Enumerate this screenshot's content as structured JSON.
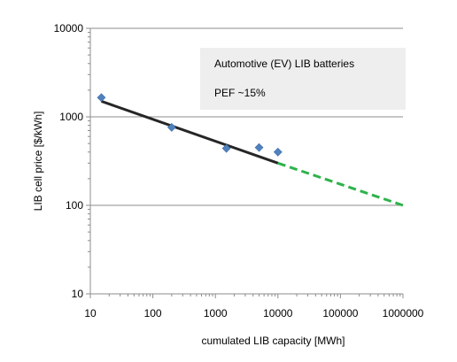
{
  "chart_data": {
    "type": "scatter",
    "title": "",
    "xlabel": "cumulated LIB capacity [MWh]",
    "ylabel": "LIB cell price [$/kWh]",
    "x_scale": "log",
    "y_scale": "log",
    "xlim": [
      10,
      1000000
    ],
    "ylim": [
      10,
      10000
    ],
    "x_ticks": [
      "10",
      "100",
      "1000",
      "10000",
      "100000",
      "1000000"
    ],
    "y_ticks": [
      "10",
      "100",
      "1000",
      "10000"
    ],
    "grid": "horizontal major",
    "series": [
      {
        "kind": "scatter",
        "marker": "diamond",
        "color": "#4f81bd",
        "points": [
          {
            "x": 15,
            "y": 1650
          },
          {
            "x": 200,
            "y": 760
          },
          {
            "x": 1500,
            "y": 440
          },
          {
            "x": 5000,
            "y": 450
          },
          {
            "x": 10000,
            "y": 400
          }
        ]
      },
      {
        "kind": "fit",
        "style": "solid",
        "color": "#262626",
        "points": [
          {
            "x": 15,
            "y": 1500
          },
          {
            "x": 10000,
            "y": 300
          }
        ]
      },
      {
        "kind": "projection",
        "style": "dashed",
        "color": "#2db34a",
        "points": [
          {
            "x": 10000,
            "y": 300
          },
          {
            "x": 1000000,
            "y": 100
          }
        ]
      }
    ],
    "annotation": {
      "lines": [
        "Automotive (EV) LIB batteries",
        "PEF ~15%"
      ],
      "background": "#eeeeee"
    }
  }
}
